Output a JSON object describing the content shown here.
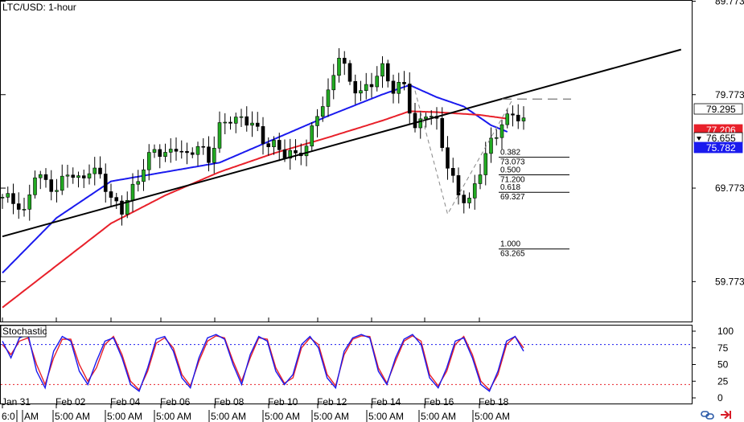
{
  "chart_data": {
    "type": "candlestick",
    "title": "LTC/USD: 1-hour",
    "instrument": "LTC/USD",
    "timeframe": "1-hour",
    "price_axis": {
      "ticks": [
        "89.773",
        "79.773",
        "69.773",
        "59.773"
      ],
      "range": [
        55.5,
        89.9
      ]
    },
    "date_labels": [
      "Jan 31",
      "Feb 02",
      "Feb 04",
      "Feb 06",
      "Feb 08",
      "Feb 10",
      "Feb 12",
      "Feb 14",
      "Feb 16",
      "Feb 18"
    ],
    "time_labels": [
      "6:0",
      "AM",
      "5:00 AM",
      "5:00 AM",
      "5:00 AM",
      "5:00 AM",
      "5:00 AM",
      "5:00 AM",
      "5:00 AM",
      "5:00 AM",
      "5:00 AM"
    ],
    "price_badges": [
      {
        "label": "79.295",
        "value": 79.295,
        "bg": "#ffffff",
        "fg": "#000000"
      },
      {
        "label": "77.206",
        "value": 77.206,
        "bg": "#e8202a",
        "fg": "#ffffff"
      },
      {
        "label": "76.655",
        "value": 76.655,
        "bg": "#ffffff",
        "fg": "#000000"
      },
      {
        "label": "75.782",
        "value": 75.782,
        "bg": "#1a1aee",
        "fg": "#ffffff"
      }
    ],
    "fibonacci": [
      {
        "ratio": "0.382",
        "price": "73.073"
      },
      {
        "ratio": "0.500",
        "price": "71.200"
      },
      {
        "ratio": "0.618",
        "price": "69.327"
      },
      {
        "ratio": "1.000",
        "price": "63.265"
      }
    ],
    "trendline": {
      "from": [
        0,
        64.6
      ],
      "to": [
        125,
        84.6
      ]
    },
    "resistance_price": 79.3,
    "price_path": [
      [
        0,
        68.8
      ],
      [
        2,
        68.1
      ],
      [
        4,
        66.9
      ],
      [
        6,
        71.7
      ],
      [
        8,
        70.6
      ],
      [
        10,
        69.1
      ],
      [
        12,
        71.4
      ],
      [
        14,
        70.8
      ],
      [
        16,
        72.0
      ],
      [
        18,
        71.0
      ],
      [
        20,
        68.2
      ],
      [
        22,
        67.6
      ],
      [
        24,
        70.0
      ],
      [
        26,
        72.0
      ],
      [
        28,
        73.6
      ],
      [
        30,
        73.2
      ],
      [
        32,
        74.6
      ],
      [
        34,
        73.2
      ],
      [
        36,
        74.1
      ],
      [
        38,
        72.5
      ],
      [
        40,
        76.6
      ],
      [
        42,
        77.5
      ],
      [
        44,
        76.8
      ],
      [
        46,
        76.5
      ],
      [
        48,
        75.0
      ],
      [
        50,
        74.7
      ],
      [
        52,
        73.4
      ],
      [
        54,
        72.9
      ],
      [
        56,
        74.2
      ],
      [
        58,
        78.2
      ],
      [
        60,
        79.8
      ],
      [
        62,
        83.8
      ],
      [
        64,
        80.9
      ],
      [
        66,
        80.3
      ],
      [
        68,
        81.3
      ],
      [
        70,
        82.3
      ],
      [
        72,
        80.0
      ],
      [
        74,
        81.1
      ],
      [
        76,
        76.2
      ],
      [
        78,
        77.8
      ],
      [
        80,
        76.4
      ],
      [
        82,
        72.2
      ],
      [
        84,
        69.5
      ],
      [
        86,
        68.3
      ],
      [
        88,
        71.4
      ],
      [
        90,
        74.6
      ],
      [
        92,
        77.0
      ],
      [
        94,
        78.0
      ],
      [
        96,
        76.5
      ]
    ],
    "candle_range": [
      0,
      96
    ],
    "moving_averages": [
      {
        "color": "#1a1aee",
        "points": [
          [
            0,
            60.7
          ],
          [
            10,
            66.6
          ],
          [
            20,
            70.5
          ],
          [
            30,
            71.5
          ],
          [
            40,
            72.5
          ],
          [
            50,
            75.0
          ],
          [
            60,
            77.5
          ],
          [
            70,
            79.8
          ],
          [
            75,
            80.8
          ],
          [
            80,
            79.5
          ],
          [
            85,
            78.5
          ],
          [
            90,
            76.5
          ],
          [
            93,
            75.8
          ]
        ]
      },
      {
        "color": "#e8202a",
        "points": [
          [
            0,
            57.0
          ],
          [
            10,
            61.5
          ],
          [
            20,
            66.0
          ],
          [
            30,
            69.0
          ],
          [
            40,
            71.5
          ],
          [
            50,
            73.5
          ],
          [
            60,
            75.2
          ],
          [
            70,
            77.0
          ],
          [
            75,
            78.0
          ],
          [
            80,
            77.9
          ],
          [
            88,
            77.6
          ],
          [
            93,
            77.2
          ]
        ]
      }
    ],
    "dashed_zigzag": [
      [
        76,
        80.2
      ],
      [
        82,
        67.0
      ],
      [
        94,
        79.3
      ]
    ],
    "stochastic": {
      "label": "Stochastic",
      "ticks": [
        "100",
        "75",
        "50",
        "25",
        "0"
      ],
      "overbought": 80,
      "oversold": 20,
      "k": [
        85,
        60,
        90,
        95,
        40,
        15,
        70,
        92,
        85,
        40,
        20,
        55,
        85,
        90,
        60,
        20,
        10,
        45,
        88,
        92,
        70,
        30,
        15,
        60,
        90,
        95,
        88,
        50,
        20,
        65,
        92,
        85,
        40,
        20,
        35,
        80,
        92,
        75,
        30,
        15,
        70,
        90,
        95,
        90,
        40,
        20,
        60,
        88,
        95,
        80,
        30,
        15,
        45,
        85,
        90,
        60,
        20,
        10,
        40,
        85,
        92,
        70
      ],
      "d": [
        80,
        65,
        85,
        90,
        50,
        20,
        60,
        88,
        88,
        50,
        25,
        45,
        80,
        92,
        65,
        25,
        12,
        40,
        82,
        90,
        75,
        35,
        18,
        55,
        85,
        93,
        90,
        55,
        25,
        60,
        90,
        88,
        45,
        22,
        30,
        75,
        90,
        80,
        35,
        18,
        65,
        88,
        93,
        92,
        45,
        22,
        55,
        85,
        93,
        85,
        35,
        18,
        40,
        80,
        92,
        65,
        25,
        12,
        35,
        80,
        92,
        75
      ],
      "colors": {
        "k": "#1a1aee",
        "d": "#e8202a"
      }
    }
  }
}
